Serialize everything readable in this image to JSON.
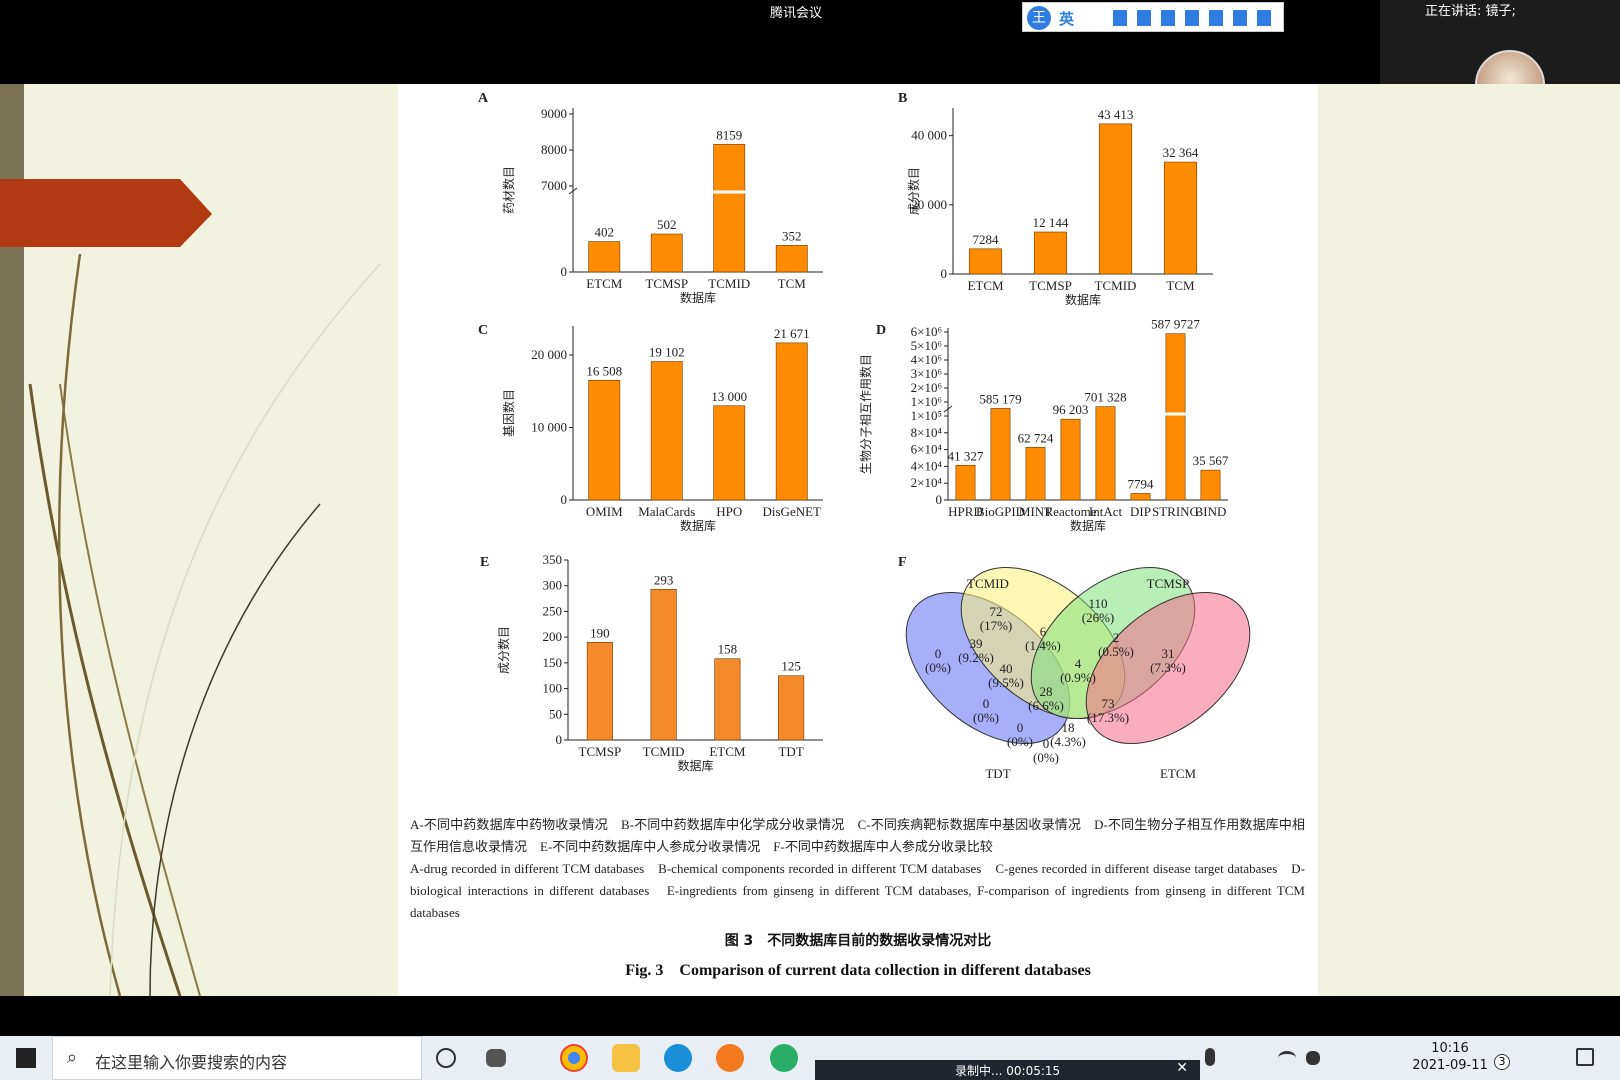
{
  "meeting": {
    "app_label": "腾讯会议",
    "speaking_label": "正在讲话: 镜子;",
    "user_name": "镜子",
    "ime": {
      "badge": "王",
      "lang": "英"
    }
  },
  "taskbar": {
    "search_placeholder": "在这里输入你要搜索的内容",
    "time": "10:16",
    "date": "2021-09-11",
    "notification_count": "3",
    "recording_label": "录制中... 00:05:15"
  },
  "figure": {
    "caption_cn": "A-不同中药数据库中药物收录情况　B-不同中药数据库中化学成分收录情况　C-不同疾病靶标数据库中基因收录情况　D-不同生物分子相互作用数据库中相互作用信息收录情况　E-不同中药数据库中人参成分收录情况　F-不同中药数据库中人参成分收录比较",
    "caption_en": "A-drug recorded in different TCM databases　B-chemical components recorded in different TCM databases　C-genes recorded in different disease target databases　D-biological interactions in different databases　E-ingredients from ginseng in different TCM databases, F-comparison of ingredients from ginseng in different TCM databases",
    "title_cn": "图 3　不同数据库目前的数据收录情况对比",
    "title_en": "Fig. 3　Comparison of current data collection in different databases"
  },
  "chart_data": [
    {
      "panel": "A",
      "type": "bar",
      "xlabel": "数据库",
      "ylabel": "药材数目",
      "categories": [
        "ETCM",
        "TCMSP",
        "TCMID",
        "TCM"
      ],
      "values": [
        402,
        502,
        8159,
        352
      ],
      "value_labels": [
        "402",
        "502",
        "8159",
        "352"
      ],
      "yticks": [
        "0",
        "7000",
        "8000",
        "9000"
      ],
      "broken_axis": true
    },
    {
      "panel": "B",
      "type": "bar",
      "xlabel": "数据库",
      "ylabel": "成分数目",
      "categories": [
        "ETCM",
        "TCMSP",
        "TCMID",
        "TCM"
      ],
      "values": [
        7284,
        12144,
        43413,
        32364
      ],
      "value_labels": [
        "7284",
        "12 144",
        "43 413",
        "32 364"
      ],
      "yticks": [
        "0",
        "20 000",
        "40 000"
      ],
      "ylim": [
        0,
        48000
      ]
    },
    {
      "panel": "C",
      "type": "bar",
      "xlabel": "数据库",
      "ylabel": "基因数目",
      "categories": [
        "OMIM",
        "MalaCards",
        "HPO",
        "DisGeNET"
      ],
      "values": [
        16508,
        19102,
        13000,
        21671
      ],
      "value_labels": [
        "16 508",
        "19 102",
        "13 000",
        "21 671"
      ],
      "yticks": [
        "0",
        "10 000",
        "20 000"
      ],
      "ylim": [
        0,
        24000
      ]
    },
    {
      "panel": "D",
      "type": "bar",
      "xlabel": "数据库",
      "ylabel": "生物分子相互作用数目",
      "categories": [
        "HPRD",
        "BioGPID",
        "MINT",
        "Reactome",
        "IntAct",
        "DIP",
        "STRING",
        "BIND"
      ],
      "values": [
        41327,
        585179,
        62724,
        96203,
        701328,
        7794,
        5879727,
        35567
      ],
      "value_labels": [
        "41 327",
        "585 179",
        "62 724",
        "96 203",
        "701 328",
        "7794",
        "587 9727",
        "35 567"
      ],
      "yticks": [
        "0",
        "2×10⁴",
        "4×10⁴",
        "6×10⁴",
        "8×10⁴",
        "1×10⁵",
        "1×10⁶",
        "2×10⁶",
        "3×10⁶",
        "4×10⁶",
        "5×10⁶",
        "6×10⁶"
      ],
      "broken_axis": true
    },
    {
      "panel": "E",
      "type": "bar",
      "xlabel": "数据库",
      "ylabel": "成分数目",
      "categories": [
        "TCMSP",
        "TCMID",
        "ETCM",
        "TDT"
      ],
      "values": [
        190,
        293,
        158,
        125
      ],
      "value_labels": [
        "190",
        "293",
        "158",
        "125"
      ],
      "yticks": [
        "0",
        "50",
        "100",
        "150",
        "200",
        "250",
        "300",
        "350"
      ],
      "ylim": [
        0,
        350
      ]
    },
    {
      "panel": "F",
      "type": "venn",
      "sets": [
        "TCMID",
        "TCMSP",
        "TDT",
        "ETCM"
      ],
      "regions": [
        {
          "count": "0",
          "pct": "(0%)"
        },
        {
          "count": "72",
          "pct": "(17%)"
        },
        {
          "count": "110",
          "pct": "(26%)"
        },
        {
          "count": "31",
          "pct": "(7.3%)"
        },
        {
          "count": "39",
          "pct": "(9.2%)"
        },
        {
          "count": "6",
          "pct": "(1.4%)"
        },
        {
          "count": "2",
          "pct": "(0.5%)"
        },
        {
          "count": "40",
          "pct": "(9.5%)"
        },
        {
          "count": "4",
          "pct": "(0.9%)"
        },
        {
          "count": "28",
          "pct": "(6.6%)"
        },
        {
          "count": "0",
          "pct": "(0%)"
        },
        {
          "count": "73",
          "pct": "(17.3%)"
        },
        {
          "count": "0",
          "pct": "(0%)"
        },
        {
          "count": "18",
          "pct": "(4.3%)"
        },
        {
          "count": "0",
          "pct": "(0%)"
        }
      ]
    }
  ],
  "colors": {
    "bar": "#ff8c00",
    "bar_e": "#f58a2c",
    "slide_bg": "#f1f3de",
    "arrow": "#b23a12"
  }
}
